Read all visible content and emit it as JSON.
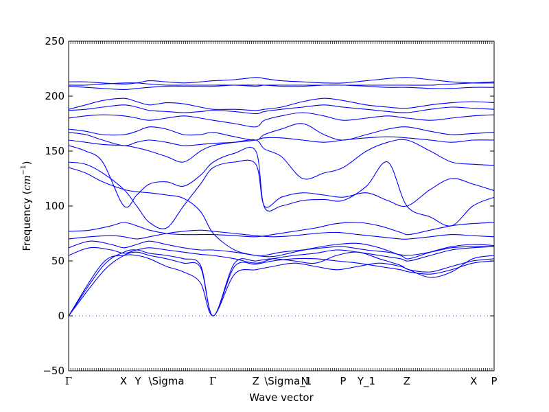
{
  "chart_data": {
    "type": "line",
    "title": "",
    "xlabel": "Wave vector",
    "ylabel_text": "Frequency (",
    "ylabel_unit": "cm",
    "ylabel_exp": "−1",
    "ylabel_close": ")",
    "ylim": [
      -50,
      250
    ],
    "yticks": [
      -50,
      0,
      50,
      100,
      150,
      200,
      250
    ],
    "ytick_labels": [
      "−50",
      "0",
      "50",
      "100",
      "150",
      "200",
      "250"
    ],
    "xlim": [
      0,
      100
    ],
    "high_symmetry_points": [
      {
        "label": "Γ",
        "x": 0
      },
      {
        "label": "X",
        "x": 12.9
      },
      {
        "label": "Y",
        "x": 16.3
      },
      {
        "label": "\\Sigma",
        "x": 18.8
      },
      {
        "label": "Γ",
        "x": 33.9
      },
      {
        "label": "Z",
        "x": 44.0
      },
      {
        "label": "\\Sigma_1",
        "x": 46.0
      },
      {
        "label": "N",
        "x": 55.5
      },
      {
        "label": "P",
        "x": 64.5
      },
      {
        "label": "Y_1",
        "x": 70.0
      },
      {
        "label": "Z",
        "x": 79.5
      },
      {
        "label": "X",
        "x": 95.2
      },
      {
        "label": "P",
        "x": 100
      }
    ],
    "grid": false,
    "line_color": "#0000ff",
    "zero_line": true,
    "series": [
      {
        "x": [
          0,
          8,
          13,
          16,
          19,
          23,
          27,
          31,
          34,
          39,
          44,
          48,
          53,
          58,
          63,
          68,
          73,
          78,
          80,
          85,
          90,
          95,
          100
        ],
        "y": [
          0,
          40,
          55,
          58,
          55,
          52,
          48,
          44,
          0,
          45,
          47,
          50,
          52,
          52,
          50,
          48,
          45,
          42,
          40,
          38,
          42,
          48,
          50
        ]
      },
      {
        "x": [
          0,
          8,
          13,
          16,
          19,
          23,
          27,
          31,
          34,
          39,
          44,
          48,
          53,
          58,
          63,
          68,
          73,
          78,
          80,
          85,
          90,
          95,
          100
        ],
        "y": [
          0,
          45,
          58,
          60,
          57,
          55,
          52,
          46,
          0,
          48,
          50,
          52,
          50,
          48,
          55,
          58,
          52,
          46,
          42,
          40,
          45,
          50,
          52
        ]
      },
      {
        "x": [
          0,
          8,
          13,
          16,
          19,
          23,
          27,
          31,
          34,
          39,
          44,
          48,
          53,
          58,
          63,
          68,
          73,
          78,
          80,
          85,
          90,
          95,
          100
        ],
        "y": [
          0,
          48,
          55,
          55,
          52,
          45,
          40,
          30,
          0,
          38,
          42,
          45,
          48,
          45,
          42,
          45,
          48,
          45,
          42,
          35,
          40,
          52,
          55
        ]
      },
      {
        "x": [
          0,
          5,
          10,
          13,
          16,
          19,
          23,
          27,
          31,
          34,
          39,
          44,
          48,
          53,
          58,
          63,
          68,
          73,
          78,
          80,
          85,
          90,
          95,
          100
        ],
        "y": [
          55,
          62,
          60,
          57,
          60,
          62,
          60,
          58,
          56,
          55,
          52,
          48,
          52,
          55,
          57,
          60,
          58,
          55,
          52,
          50,
          55,
          60,
          62,
          63
        ]
      },
      {
        "x": [
          0,
          5,
          10,
          13,
          16,
          19,
          23,
          27,
          31,
          34,
          39,
          44,
          48,
          53,
          58,
          63,
          68,
          73,
          78,
          80,
          85,
          90,
          95,
          100
        ],
        "y": [
          62,
          68,
          65,
          62,
          65,
          68,
          65,
          62,
          60,
          60,
          58,
          55,
          54,
          58,
          62,
          65,
          66,
          62,
          55,
          52,
          58,
          63,
          65,
          64
        ]
      },
      {
        "x": [
          0,
          5,
          10,
          13,
          16,
          19,
          23,
          27,
          31,
          34,
          39,
          44,
          48,
          53,
          58,
          63,
          68,
          73,
          78,
          80,
          85,
          90,
          95,
          100
        ],
        "y": [
          70,
          72,
          73,
          72,
          70,
          72,
          75,
          77,
          78,
          77,
          75,
          73,
          72,
          73,
          75,
          76,
          74,
          72,
          70,
          70,
          72,
          74,
          73,
          72
        ]
      },
      {
        "x": [
          0,
          5,
          10,
          13,
          16,
          19,
          23,
          27,
          31,
          34,
          39,
          44,
          48,
          53,
          58,
          63,
          68,
          73,
          78,
          80,
          85,
          90,
          95,
          100
        ],
        "y": [
          77,
          78,
          82,
          85,
          82,
          78,
          75,
          74,
          74,
          74,
          73,
          72,
          74,
          77,
          80,
          84,
          85,
          82,
          76,
          74,
          78,
          82,
          84,
          85
        ]
      },
      {
        "x": [
          0,
          4,
          8,
          13,
          16,
          19,
          23,
          27,
          31,
          34,
          39,
          44,
          46,
          50,
          55,
          60,
          64.5,
          70,
          75,
          79.5,
          85,
          90,
          95,
          100
        ],
        "y": [
          135,
          130,
          122,
          115,
          113,
          112,
          110,
          107,
          95,
          75,
          60,
          55,
          55,
          58,
          60,
          62,
          63,
          60,
          58,
          55,
          58,
          62,
          63,
          63
        ]
      },
      {
        "x": [
          0,
          4,
          8,
          13,
          16,
          19,
          23,
          27,
          31,
          34,
          39,
          44,
          46,
          50,
          55,
          60,
          64.5,
          70,
          75,
          79.5,
          85,
          90,
          95,
          100
        ],
        "y": [
          140,
          138,
          130,
          115,
          100,
          85,
          80,
          100,
          120,
          135,
          140,
          138,
          100,
          108,
          112,
          110,
          108,
          112,
          105,
          100,
          115,
          125,
          120,
          114
        ]
      },
      {
        "x": [
          0,
          4,
          8,
          13,
          16,
          19,
          23,
          27,
          31,
          34,
          39,
          44,
          46,
          50,
          55,
          60,
          64.5,
          70,
          75,
          79.5,
          85,
          90,
          95,
          100
        ],
        "y": [
          155,
          150,
          140,
          100,
          110,
          120,
          122,
          118,
          128,
          140,
          148,
          150,
          99,
          100,
          105,
          106,
          105,
          118,
          140,
          100,
          90,
          82,
          100,
          108
        ]
      },
      {
        "x": [
          0,
          4,
          8,
          13,
          16,
          19,
          23,
          27,
          31,
          34,
          39,
          44,
          46,
          50,
          55,
          60,
          64.5,
          70,
          75,
          79.5,
          85,
          90,
          95,
          100
        ],
        "y": [
          160,
          158,
          156,
          155,
          153,
          150,
          145,
          140,
          150,
          155,
          158,
          160,
          152,
          145,
          125,
          130,
          135,
          150,
          158,
          160,
          150,
          140,
          138,
          137
        ]
      },
      {
        "x": [
          0,
          4,
          8,
          13,
          16,
          19,
          23,
          27,
          31,
          34,
          39,
          44,
          46,
          50,
          55,
          60,
          64.5,
          70,
          75,
          79.5,
          85,
          90,
          95,
          100
        ],
        "y": [
          167,
          165,
          160,
          155,
          158,
          160,
          158,
          155,
          156,
          157,
          158,
          160,
          162,
          162,
          160,
          158,
          160,
          162,
          163,
          162,
          160,
          158,
          160,
          160
        ]
      },
      {
        "x": [
          0,
          4,
          8,
          13,
          16,
          19,
          23,
          27,
          31,
          34,
          39,
          44,
          46,
          50,
          55,
          60,
          64.5,
          70,
          75,
          79.5,
          85,
          90,
          95,
          100
        ],
        "y": [
          170,
          168,
          165,
          165,
          168,
          172,
          170,
          165,
          165,
          167,
          163,
          160,
          165,
          170,
          175,
          165,
          160,
          165,
          170,
          172,
          168,
          165,
          166,
          167
        ]
      },
      {
        "x": [
          0,
          4,
          8,
          13,
          16,
          19,
          23,
          27,
          31,
          34,
          39,
          44,
          46,
          50,
          55,
          60,
          64.5,
          70,
          75,
          79.5,
          85,
          90,
          95,
          100
        ],
        "y": [
          180,
          182,
          183,
          182,
          180,
          178,
          180,
          182,
          180,
          178,
          175,
          172,
          178,
          182,
          185,
          182,
          178,
          180,
          182,
          180,
          178,
          180,
          182,
          183
        ]
      },
      {
        "x": [
          0,
          4,
          8,
          13,
          16,
          19,
          23,
          27,
          31,
          34,
          39,
          44,
          46,
          50,
          55,
          60,
          64.5,
          70,
          75,
          79.5,
          85,
          90,
          95,
          100
        ],
        "y": [
          187,
          188,
          190,
          192,
          190,
          187,
          186,
          185,
          186,
          187,
          186,
          184,
          186,
          188,
          190,
          192,
          190,
          188,
          186,
          185,
          188,
          190,
          189,
          188
        ]
      },
      {
        "x": [
          0,
          4,
          8,
          13,
          16,
          19,
          23,
          27,
          31,
          34,
          39,
          44,
          46,
          50,
          55,
          60,
          64.5,
          70,
          75,
          79.5,
          85,
          90,
          95,
          100
        ],
        "y": [
          188,
          192,
          196,
          198,
          195,
          192,
          194,
          193,
          190,
          188,
          188,
          187,
          188,
          190,
          195,
          198,
          196,
          192,
          190,
          189,
          192,
          194,
          195,
          194
        ]
      },
      {
        "x": [
          0,
          4,
          8,
          13,
          16,
          19,
          23,
          27,
          31,
          34,
          39,
          44,
          46,
          50,
          55,
          60,
          64.5,
          70,
          75,
          79.5,
          85,
          90,
          95,
          100
        ],
        "y": [
          209,
          208,
          207,
          206,
          207,
          208,
          209,
          209,
          209,
          209,
          210,
          210,
          210,
          209,
          209,
          210,
          210,
          209,
          208,
          208,
          207,
          207,
          208,
          208
        ]
      },
      {
        "x": [
          0,
          4,
          8,
          13,
          16,
          19,
          23,
          27,
          31,
          34,
          39,
          44,
          46,
          50,
          55,
          60,
          64.5,
          70,
          75,
          79.5,
          85,
          90,
          95,
          100
        ],
        "y": [
          210,
          210,
          211,
          212,
          212,
          211,
          210,
          210,
          210,
          210,
          210,
          209,
          210,
          210,
          210,
          210,
          210,
          210,
          210,
          210,
          210,
          211,
          212,
          213
        ]
      },
      {
        "x": [
          0,
          4,
          8,
          13,
          16,
          19,
          23,
          27,
          31,
          34,
          39,
          44,
          46,
          50,
          55,
          60,
          64.5,
          70,
          75,
          79.5,
          85,
          90,
          95,
          100
        ],
        "y": [
          213,
          213,
          212,
          211,
          212,
          214,
          213,
          212,
          213,
          214,
          215,
          217,
          216,
          214,
          213,
          212,
          212,
          214,
          216,
          217,
          215,
          213,
          212,
          212
        ]
      }
    ]
  }
}
